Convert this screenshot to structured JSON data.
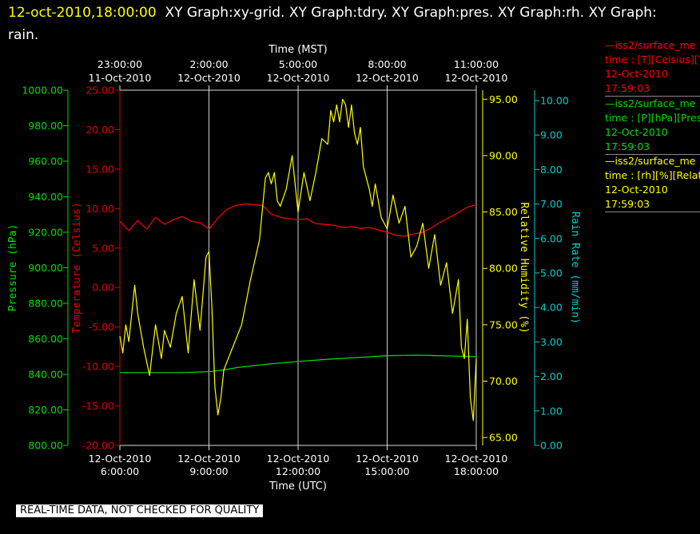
{
  "title": {
    "timestamp": "12-oct-2010,18:00:00",
    "rest": "XY Graph:xy-grid.  XY Graph:tdry.  XY Graph:pres.  XY Graph:rh.  XY Graph: rain."
  },
  "legend": [
    {
      "source": "—iss2/surface_me",
      "meta": "time : [T][Celsius][T",
      "date": "12-Oct-2010",
      "time": "17:59:03",
      "color": "#ff0000"
    },
    {
      "source": "—iss2/surface_me",
      "meta": "time : [P][hPa][Pres",
      "date": "12-Oct-2010",
      "time": "17:59:03",
      "color": "#00dd00"
    },
    {
      "source": "—iss2/surface_me",
      "meta": "time : [rh][%][Relati",
      "date": "12-Oct-2010",
      "time": "17:59:03",
      "color": "#ffff00"
    }
  ],
  "footer": "REAL-TIME DATA, NOT CHECKED FOR QUALITY",
  "chart_data": {
    "type": "line",
    "top_axis": {
      "label": "Time (MST)",
      "ticks": [
        {
          "time": "23:00:00",
          "date": "11-Oct-2010"
        },
        {
          "time": "2:00:00",
          "date": "12-Oct-2010"
        },
        {
          "time": "5:00:00",
          "date": "12-Oct-2010"
        },
        {
          "time": "8:00:00",
          "date": "12-Oct-2010"
        },
        {
          "time": "11:00:00",
          "date": "12-Oct-2010"
        }
      ]
    },
    "bottom_axis": {
      "label": "Time (UTC)",
      "range_hours_utc": [
        6,
        18
      ],
      "ticks": [
        {
          "hour": 6,
          "date": "12-Oct-2010",
          "time": "6:00:00"
        },
        {
          "hour": 9,
          "date": "12-Oct-2010",
          "time": "9:00:00"
        },
        {
          "hour": 12,
          "date": "12-Oct-2010",
          "time": "12:00:00"
        },
        {
          "hour": 15,
          "date": "12-Oct-2010",
          "time": "15:00:00"
        },
        {
          "hour": 18,
          "date": "12-Oct-2010",
          "time": "18:00:00"
        }
      ],
      "grid": true
    },
    "y_axes": [
      {
        "id": "pres",
        "label": "Pressure (hPa)",
        "color": "#00dd00",
        "range": [
          800,
          1000
        ],
        "ticks": [
          "800.00",
          "820.00",
          "840.00",
          "860.00",
          "880.00",
          "900.00",
          "920.00",
          "940.00",
          "960.00",
          "980.00",
          "1000.00"
        ]
      },
      {
        "id": "temp",
        "label": "Temperature (Celsius)",
        "color": "#dd0000",
        "range": [
          -20,
          25
        ],
        "ticks": [
          "-20.00",
          "-15.00",
          "-10.00",
          "-5.00",
          "0.00",
          "5.00",
          "10.00",
          "15.00",
          "20.00",
          "25.00"
        ]
      },
      {
        "id": "rh",
        "label": "Relative Humidity (%)",
        "color": "#ffff00",
        "range": [
          64.3,
          95.8
        ],
        "ticks": [
          "65.00",
          "70.00",
          "75.00",
          "80.00",
          "85.00",
          "90.00",
          "95.00"
        ]
      },
      {
        "id": "rain",
        "label": "Rain Rate (mm/min)",
        "color": "#00cccc",
        "range": [
          0,
          10.3
        ],
        "ticks": [
          "0.00",
          "1.00",
          "2.00",
          "3.00",
          "4.00",
          "5.00",
          "6.00",
          "7.00",
          "8.00",
          "9.00",
          "10.00"
        ]
      }
    ],
    "series": [
      {
        "axis": "temp",
        "color": "#ff0000",
        "x": [
          6.0,
          6.3,
          6.6,
          6.9,
          7.2,
          7.5,
          7.8,
          8.1,
          8.4,
          8.7,
          9.0,
          9.3,
          9.6,
          9.9,
          10.2,
          10.5,
          10.8,
          11.1,
          11.4,
          11.7,
          12.0,
          12.3,
          12.6,
          12.9,
          13.2,
          13.5,
          13.8,
          14.1,
          14.4,
          14.7,
          15.0,
          15.3,
          15.6,
          15.9,
          16.2,
          16.5,
          16.8,
          17.1,
          17.4,
          17.7,
          18.0
        ],
        "y": [
          8.4,
          7.2,
          8.5,
          7.4,
          8.9,
          8.0,
          8.6,
          9.0,
          8.4,
          8.2,
          7.4,
          8.8,
          9.9,
          10.4,
          10.6,
          10.5,
          10.4,
          9.3,
          8.9,
          8.7,
          8.6,
          8.7,
          8.1,
          8.0,
          7.9,
          7.6,
          7.7,
          7.5,
          7.6,
          7.3,
          7.0,
          6.6,
          6.5,
          6.8,
          7.0,
          7.6,
          8.3,
          8.9,
          9.5,
          10.2,
          10.5
        ]
      },
      {
        "axis": "pres",
        "color": "#00dd00",
        "x": [
          6.0,
          8.0,
          9.0,
          9.5,
          10.0,
          11.0,
          12.0,
          13.0,
          14.0,
          15.0,
          16.0,
          17.0,
          18.0
        ],
        "y": [
          841.0,
          841.0,
          841.5,
          842.5,
          844.0,
          845.8,
          847.3,
          848.5,
          849.5,
          850.5,
          850.8,
          850.4,
          850.0
        ]
      },
      {
        "axis": "rh",
        "color": "#ffff00",
        "x": [
          6.0,
          6.1,
          6.2,
          6.3,
          6.4,
          6.5,
          6.6,
          6.8,
          7.0,
          7.2,
          7.4,
          7.5,
          7.7,
          7.9,
          8.1,
          8.3,
          8.5,
          8.7,
          8.9,
          9.0,
          9.1,
          9.2,
          9.3,
          9.4,
          9.5,
          9.8,
          10.1,
          10.4,
          10.7,
          10.9,
          11.0,
          11.1,
          11.2,
          11.3,
          11.4,
          11.6,
          11.8,
          12.0,
          12.2,
          12.4,
          12.6,
          12.8,
          13.0,
          13.1,
          13.2,
          13.3,
          13.4,
          13.5,
          13.6,
          13.7,
          13.8,
          13.9,
          14.0,
          14.1,
          14.2,
          14.3,
          14.4,
          14.5,
          14.6,
          14.8,
          15.0,
          15.2,
          15.4,
          15.6,
          15.8,
          16.0,
          16.2,
          16.4,
          16.6,
          16.8,
          17.0,
          17.2,
          17.4,
          17.5,
          17.6,
          17.7,
          17.8,
          17.9,
          18.0
        ],
        "y": [
          74.0,
          72.5,
          75.0,
          73.5,
          76.0,
          78.5,
          76.0,
          73.0,
          70.5,
          75.0,
          72.0,
          74.5,
          73.0,
          76.0,
          77.5,
          72.5,
          79.0,
          74.5,
          81.0,
          81.5,
          76.5,
          69.5,
          67.0,
          68.5,
          71.0,
          73.0,
          75.0,
          79.0,
          82.5,
          88.0,
          88.5,
          87.5,
          88.5,
          86.0,
          85.5,
          87.0,
          90.0,
          85.0,
          88.5,
          86.0,
          88.5,
          91.5,
          91.0,
          94.0,
          93.0,
          94.5,
          93.0,
          95.0,
          94.5,
          92.5,
          94.5,
          92.0,
          91.0,
          92.5,
          89.0,
          88.0,
          87.0,
          85.5,
          87.5,
          84.5,
          83.5,
          86.5,
          84.0,
          85.5,
          81.0,
          82.0,
          84.0,
          80.0,
          83.0,
          78.5,
          80.5,
          76.0,
          79.0,
          73.0,
          72.0,
          75.5,
          68.5,
          66.5,
          72.0
        ]
      }
    ]
  }
}
